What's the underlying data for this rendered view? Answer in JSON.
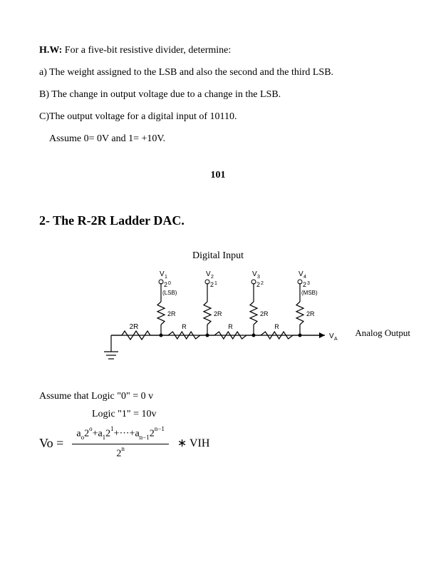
{
  "hw": {
    "label": "H.W:",
    "intro": " For a five-bit resistive divider, determine:",
    "a": "a) The weight assigned to the LSB and also the second and the third LSB.",
    "b": "B) The change in output voltage due to a change in the LSB.",
    "c": "C)The output voltage for a digital input of 10110.",
    "assume": "Assume   0= 0V and 1= +10V."
  },
  "page_number": "101",
  "section_title": "2- The R-2R Ladder DAC.",
  "diagram": {
    "top_label": "Digital Input",
    "analog_label": "Analog Output",
    "nodes": [
      {
        "name": "V1",
        "power": "2",
        "exp": "0",
        "sub": "(LSB)"
      },
      {
        "name": "V2",
        "power": "2",
        "exp": "1",
        "sub": ""
      },
      {
        "name": "V3",
        "power": "2",
        "exp": "2",
        "sub": ""
      },
      {
        "name": "V4",
        "power": "2",
        "exp": "3",
        "sub": "(MSB)"
      }
    ],
    "r_vert": "2R",
    "r_first": "2R",
    "r_horiz": "R",
    "va": "VA"
  },
  "logic": {
    "line1_prefix": "Assume that Logic \"0\" = ",
    "line1_val": "0 v",
    "line2_prefix": "Logic \"1\" = ",
    "line2_val": "10v"
  },
  "formula": {
    "vo": "Vo =",
    "num_parts": {
      "a0": "a",
      "a0sub": "o",
      "p0": "2",
      "e0": "o",
      "plus1": "+a",
      "a1sub": "1",
      "p1": "2",
      "e1": "1",
      "dots": "+···+a",
      "ansub": "n−1",
      "pn": "2",
      "en": "n−1"
    },
    "den": "2",
    "den_exp": "n",
    "times": "∗ VIH"
  }
}
